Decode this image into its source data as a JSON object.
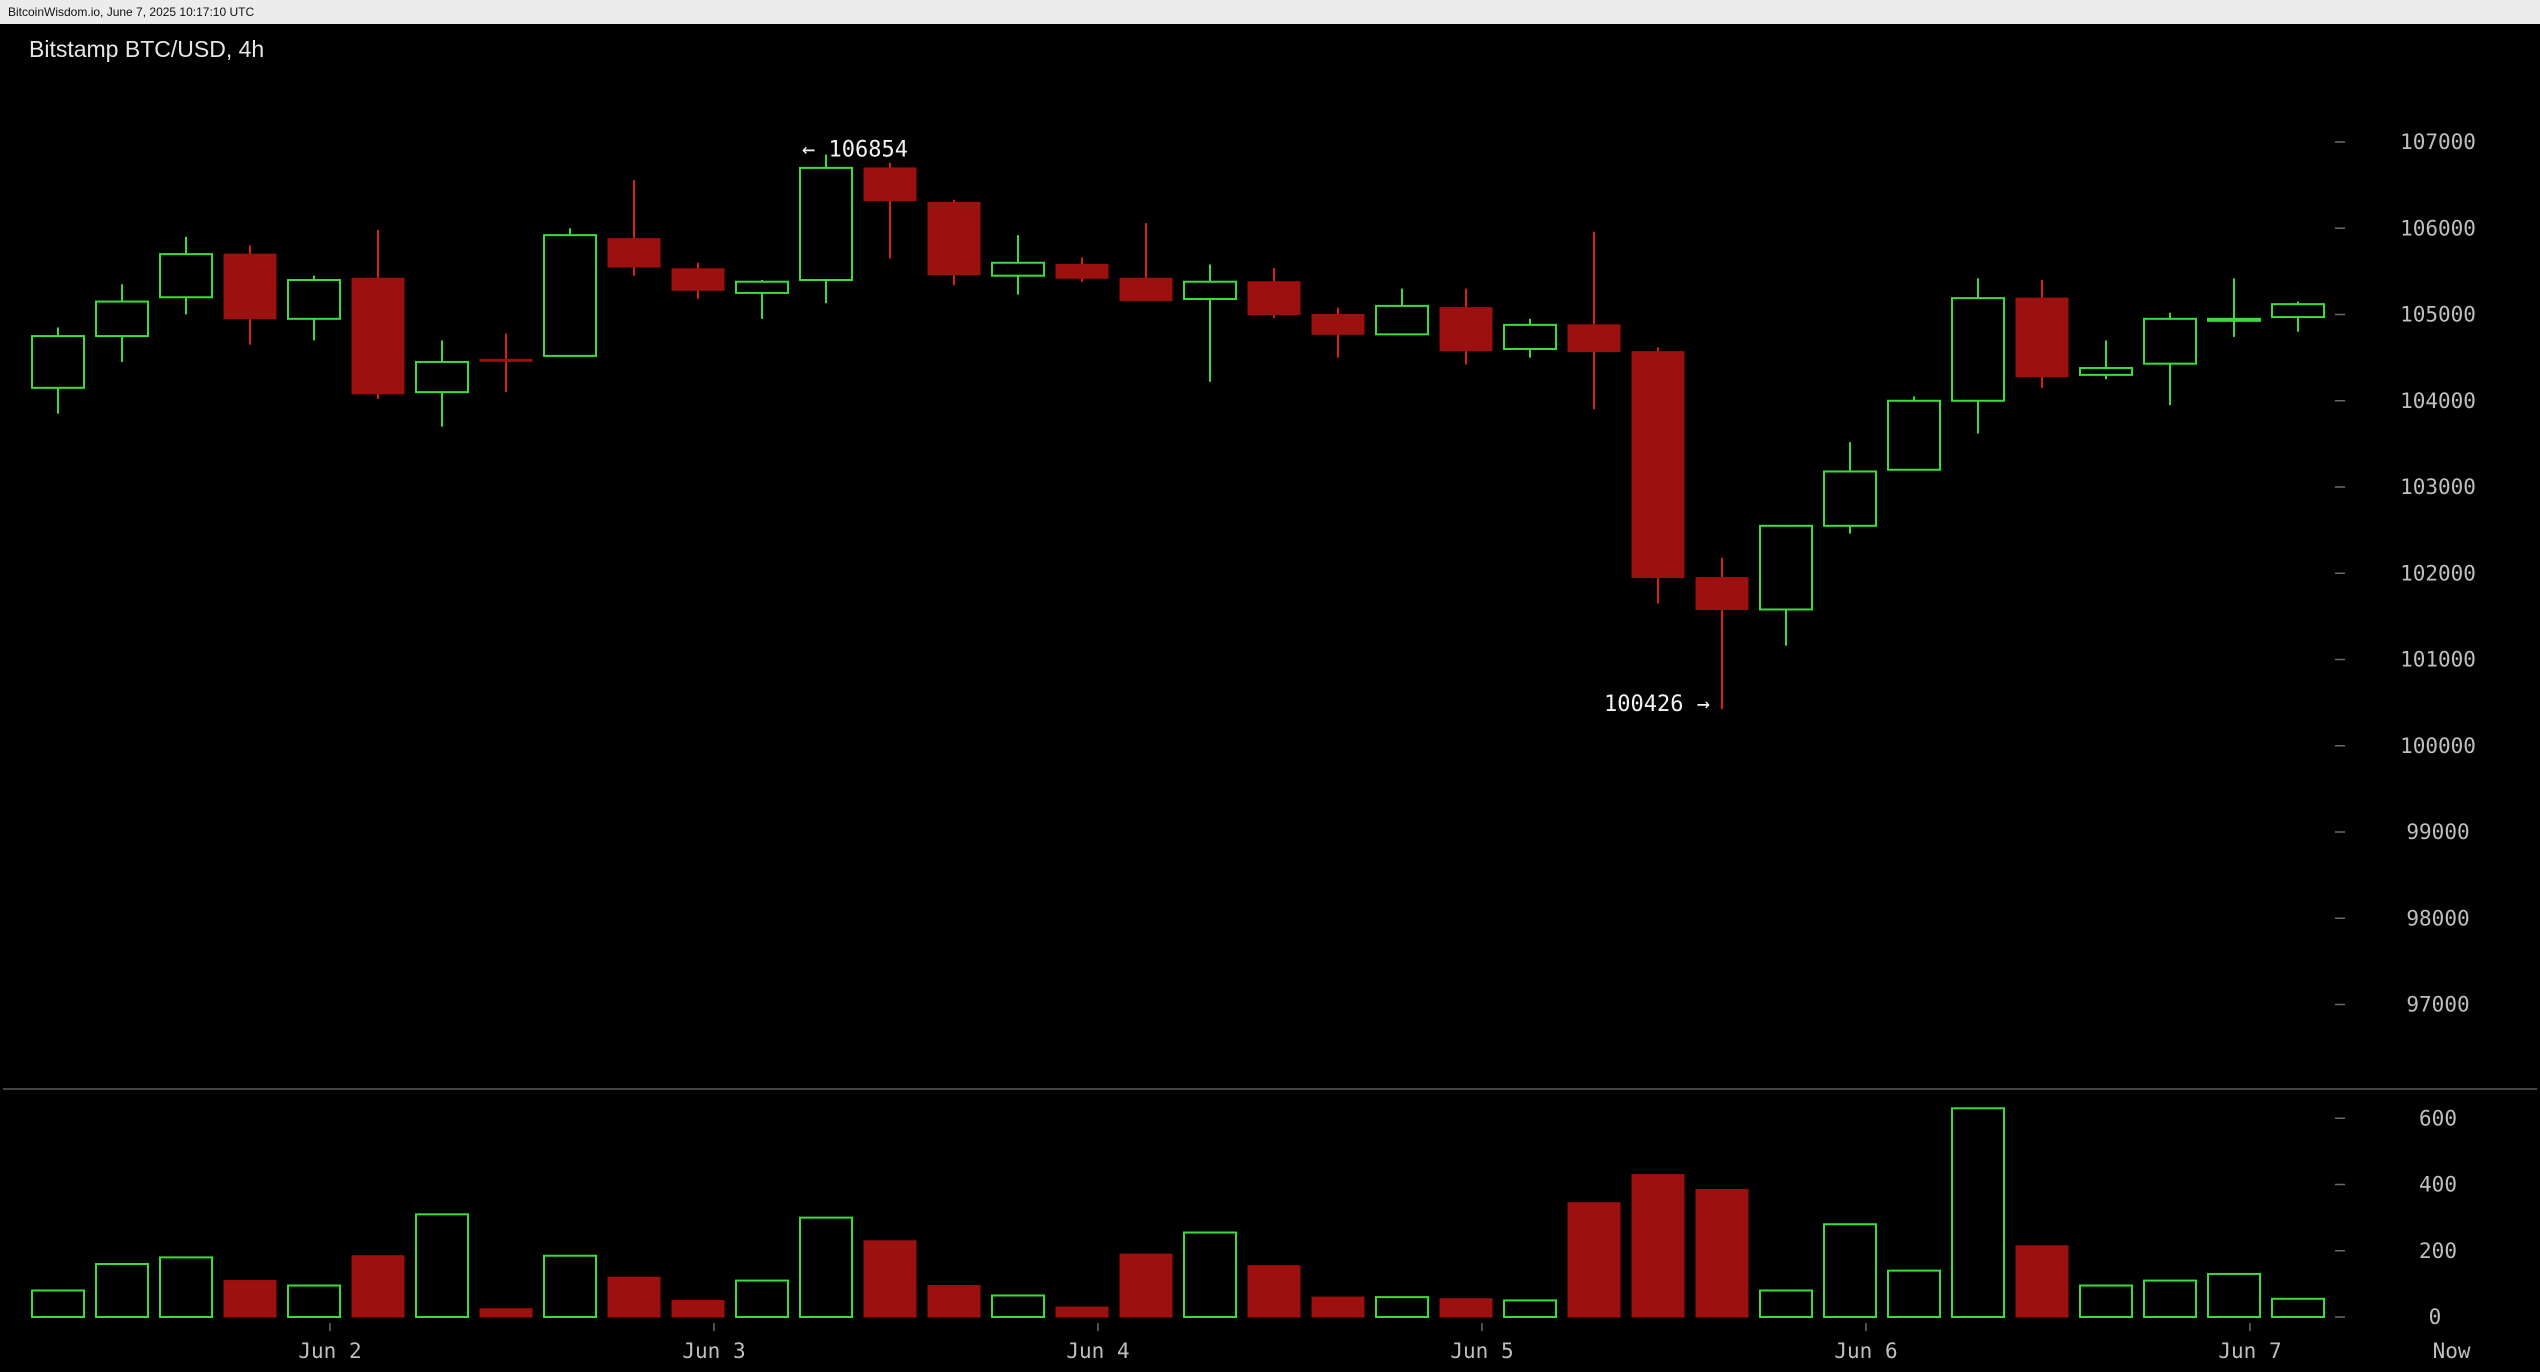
{
  "header": {
    "source_line": "BitcoinWisdom.io, June 7, 2025 10:17:10 UTC"
  },
  "chart_title": "Bitstamp BTC/USD, 4h",
  "colors": {
    "up": "#3ddc3d",
    "down": "#9c1010",
    "down_edge": "#d42020",
    "background": "#000000",
    "axis_text": "#bfbfbf"
  },
  "chart_data": {
    "type": "candlestick",
    "title": "Bitstamp BTC/USD, 4h",
    "price_axis": {
      "ticks": [
        107000,
        106000,
        105000,
        104000,
        103000,
        102000,
        101000,
        100000,
        99000,
        98000,
        97000
      ],
      "range": [
        96000,
        107800
      ]
    },
    "volume_axis": {
      "ticks": [
        600,
        400,
        200,
        0
      ],
      "range": [
        0,
        640
      ]
    },
    "x_labels": [
      {
        "label": "Jun 2",
        "index": 4.25
      },
      {
        "label": "Jun 3",
        "index": 10.25
      },
      {
        "label": "Jun 4",
        "index": 16.25
      },
      {
        "label": "Jun 5",
        "index": 22.25
      },
      {
        "label": "Jun 6",
        "index": 28.25
      },
      {
        "label": "Jun 7",
        "index": 34.25
      },
      {
        "label": "Now",
        "index": 37.4
      }
    ],
    "annotations": {
      "high": {
        "text": "← 106854",
        "value": 106854,
        "index": 12
      },
      "low": {
        "text": "100426 →",
        "value": 100426,
        "index": 26
      }
    },
    "candles": [
      {
        "o": 104150,
        "h": 104850,
        "l": 103850,
        "c": 104750,
        "v": 80
      },
      {
        "o": 104750,
        "h": 105350,
        "l": 104450,
        "c": 105150,
        "v": 160
      },
      {
        "o": 105200,
        "h": 105900,
        "l": 105000,
        "c": 105700,
        "v": 180
      },
      {
        "o": 105700,
        "h": 105800,
        "l": 104650,
        "c": 104950,
        "v": 110
      },
      {
        "o": 104950,
        "h": 105450,
        "l": 104700,
        "c": 105400,
        "v": 95
      },
      {
        "o": 105420,
        "h": 105980,
        "l": 104020,
        "c": 104080,
        "v": 185
      },
      {
        "o": 104100,
        "h": 104700,
        "l": 103700,
        "c": 104450,
        "v": 310
      },
      {
        "o": 104480,
        "h": 104780,
        "l": 104100,
        "c": 104470,
        "v": 25
      },
      {
        "o": 104520,
        "h": 106000,
        "l": 104520,
        "c": 105920,
        "v": 185
      },
      {
        "o": 105880,
        "h": 106560,
        "l": 105450,
        "c": 105550,
        "v": 120
      },
      {
        "o": 105530,
        "h": 105600,
        "l": 105180,
        "c": 105280,
        "v": 50
      },
      {
        "o": 105250,
        "h": 105400,
        "l": 104950,
        "c": 105380,
        "v": 110
      },
      {
        "o": 105400,
        "h": 106854,
        "l": 105130,
        "c": 106700,
        "v": 300
      },
      {
        "o": 106700,
        "h": 106760,
        "l": 105650,
        "c": 106320,
        "v": 230
      },
      {
        "o": 106300,
        "h": 106330,
        "l": 105340,
        "c": 105460,
        "v": 95
      },
      {
        "o": 105450,
        "h": 105920,
        "l": 105230,
        "c": 105600,
        "v": 65
      },
      {
        "o": 105580,
        "h": 105660,
        "l": 105380,
        "c": 105420,
        "v": 30
      },
      {
        "o": 105420,
        "h": 106060,
        "l": 105160,
        "c": 105160,
        "v": 190
      },
      {
        "o": 105180,
        "h": 105580,
        "l": 104220,
        "c": 105380,
        "v": 255
      },
      {
        "o": 105380,
        "h": 105540,
        "l": 104960,
        "c": 105000,
        "v": 155
      },
      {
        "o": 105000,
        "h": 105080,
        "l": 104500,
        "c": 104770,
        "v": 60
      },
      {
        "o": 104770,
        "h": 105300,
        "l": 104770,
        "c": 105100,
        "v": 60
      },
      {
        "o": 105080,
        "h": 105300,
        "l": 104420,
        "c": 104580,
        "v": 55
      },
      {
        "o": 104600,
        "h": 104950,
        "l": 104500,
        "c": 104880,
        "v": 50
      },
      {
        "o": 104880,
        "h": 105960,
        "l": 103900,
        "c": 104570,
        "v": 345
      },
      {
        "o": 104570,
        "h": 104620,
        "l": 101650,
        "c": 101950,
        "v": 430
      },
      {
        "o": 101950,
        "h": 102180,
        "l": 100426,
        "c": 101580,
        "v": 385
      },
      {
        "o": 101580,
        "h": 102560,
        "l": 101160,
        "c": 102550,
        "v": 80
      },
      {
        "o": 102550,
        "h": 103520,
        "l": 102460,
        "c": 103180,
        "v": 280
      },
      {
        "o": 103200,
        "h": 104050,
        "l": 103200,
        "c": 104000,
        "v": 140
      },
      {
        "o": 104000,
        "h": 105420,
        "l": 103620,
        "c": 105190,
        "v": 630
      },
      {
        "o": 105190,
        "h": 105400,
        "l": 104150,
        "c": 104280,
        "v": 215
      },
      {
        "o": 104300,
        "h": 104700,
        "l": 104250,
        "c": 104380,
        "v": 95
      },
      {
        "o": 104430,
        "h": 105020,
        "l": 103950,
        "c": 104950,
        "v": 110
      },
      {
        "o": 104940,
        "h": 105420,
        "l": 104740,
        "c": 104950,
        "v": 130
      },
      {
        "o": 104970,
        "h": 105150,
        "l": 104800,
        "c": 105120,
        "v": 55
      }
    ]
  }
}
